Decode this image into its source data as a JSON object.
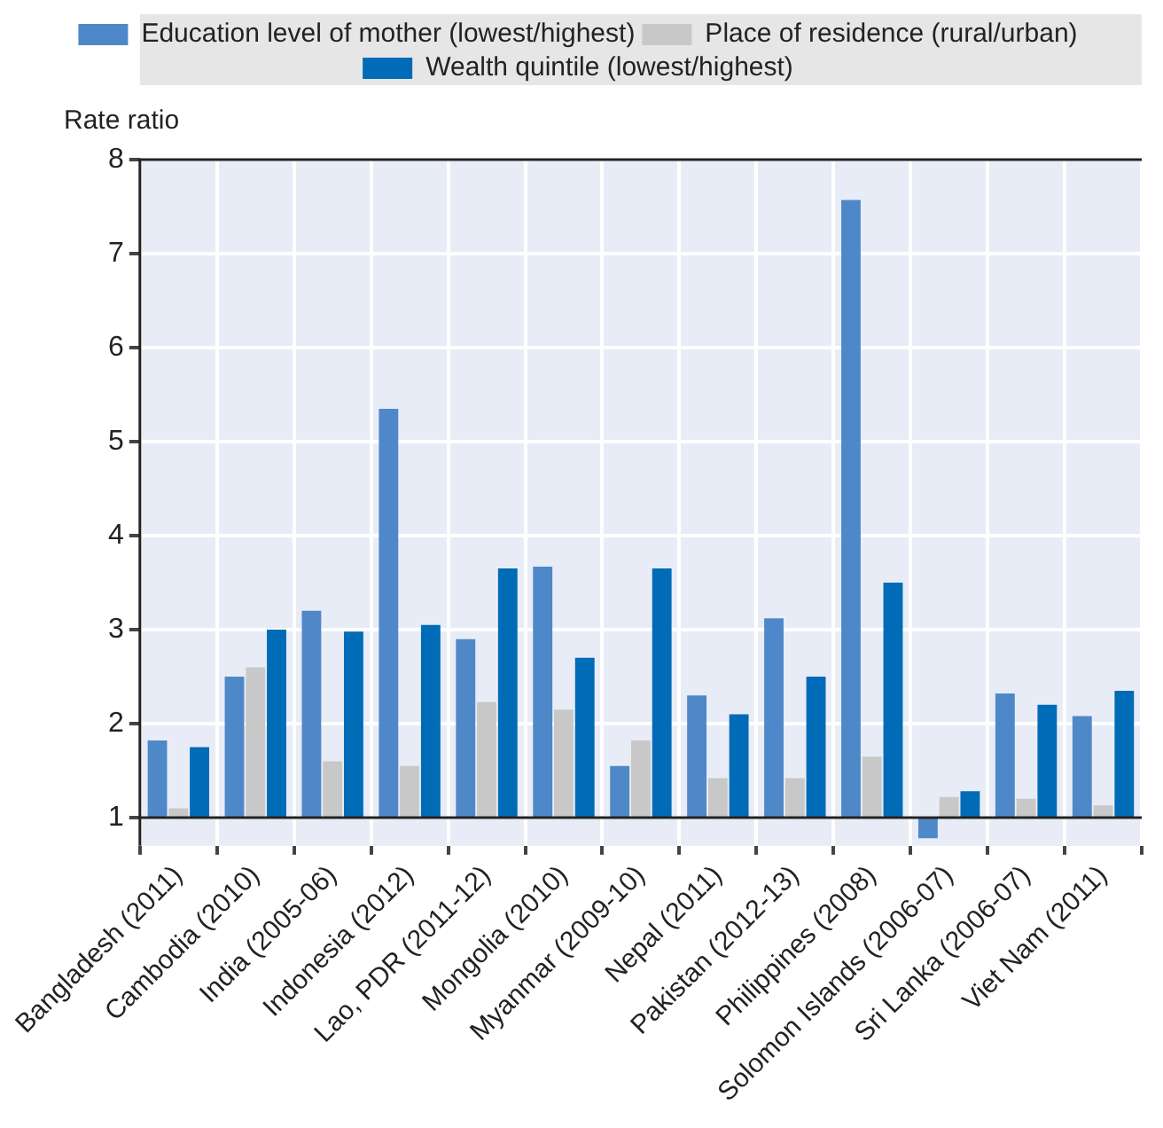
{
  "chart_data": {
    "type": "bar",
    "ylabel": "Rate ratio",
    "categories": [
      "Bangladesh (2011)",
      "Cambodia (2010)",
      "India (2005-06)",
      "Indonesia (2012)",
      "Lao, PDR (2011-12)",
      "Mongolia (2010)",
      "Myanmar (2009-10)",
      "Nepal (2011)",
      "Pakistan (2012-13)",
      "Philippines (2008)",
      "Solomon Islands (2006-07)",
      "Sri Lanka (2006-07)",
      "Viet Nam (2011)"
    ],
    "series": [
      {
        "name": "Education level of mother (lowest/highest)",
        "color": "#4f88c8",
        "base": [
          1,
          1,
          1,
          1,
          1,
          1,
          1,
          1,
          1,
          1,
          1,
          1,
          1
        ],
        "values": [
          0.82,
          1.5,
          2.2,
          4.35,
          1.9,
          2.67,
          0.55,
          1.3,
          2.12,
          6.57,
          -0.22,
          1.32,
          1.08
        ]
      },
      {
        "name": "Place of residence (rural/urban)",
        "color": "#c8c8c8",
        "base": [
          1,
          1,
          1,
          1,
          1,
          1,
          1,
          1,
          1,
          1,
          1,
          1,
          1
        ],
        "values": [
          0.1,
          1.6,
          0.6,
          0.55,
          1.23,
          1.15,
          0.82,
          0.42,
          0.42,
          0.65,
          0.22,
          0.2,
          0.13
        ]
      },
      {
        "name": "Wealth quintile (lowest/highest)",
        "color": "#006bb6",
        "base": [
          1,
          1,
          1,
          1,
          1,
          1,
          1,
          1,
          1,
          1,
          1,
          1,
          1
        ],
        "values": [
          0.75,
          2.0,
          1.98,
          2.05,
          2.65,
          1.7,
          2.65,
          1.1,
          1.5,
          2.5,
          0.28,
          1.2,
          1.35
        ]
      }
    ],
    "ylim": [
      0.7,
      8
    ],
    "yticks": [
      1,
      2,
      3,
      4,
      5,
      6,
      7,
      8
    ],
    "ref_lines": [
      {
        "axis": "y",
        "value": 1,
        "color": "#222222"
      }
    ],
    "grid": true,
    "legend": "top"
  }
}
